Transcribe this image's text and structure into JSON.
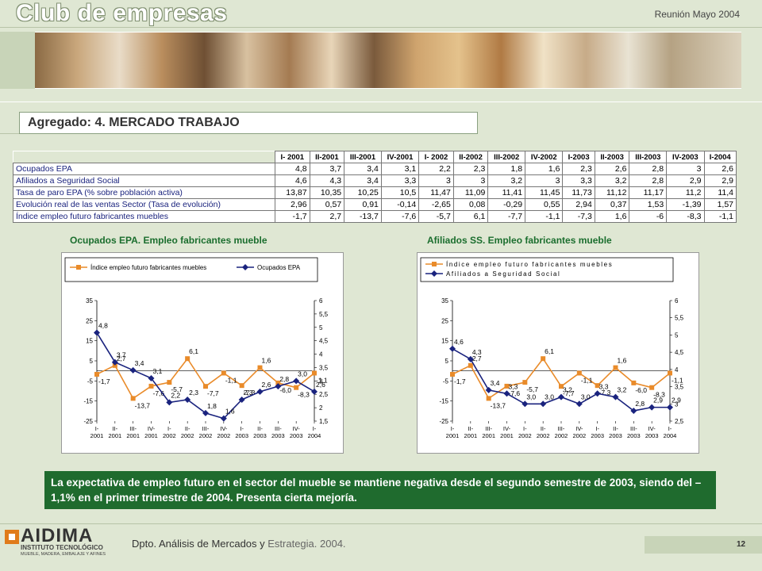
{
  "header": {
    "title": "Club de empresas",
    "date": "Reunión Mayo 2004"
  },
  "section_title": "Agregado: 4. MERCADO TRABAJO",
  "table": {
    "columns": [
      "I- 2001",
      "II-2001",
      "III-2001",
      "IV-2001",
      "I- 2002",
      "II-2002",
      "III-2002",
      "IV-2002",
      "I-2003",
      "II-2003",
      "III-2003",
      "IV-2003",
      "I-2004"
    ],
    "rows": [
      {
        "label": "Ocupados EPA",
        "values": [
          "4,8",
          "3,7",
          "3,4",
          "3,1",
          "2,2",
          "2,3",
          "1,8",
          "1,6",
          "2,3",
          "2,6",
          "2,8",
          "3",
          "2,6"
        ]
      },
      {
        "label": "Afiliados a Seguridad Social",
        "values": [
          "4,6",
          "4,3",
          "3,4",
          "3,3",
          "3",
          "3",
          "3,2",
          "3",
          "3,3",
          "3,2",
          "2,8",
          "2,9",
          "2,9"
        ]
      },
      {
        "label": "Tasa de paro EPA (% sobre población activa)",
        "values": [
          "13,87",
          "10,35",
          "10,25",
          "10,5",
          "11,47",
          "11,09",
          "11,41",
          "11,45",
          "11,73",
          "11,12",
          "11,17",
          "11,2",
          "11,4"
        ]
      },
      {
        "label": "Evolución real de las ventas Sector (Tasa de evolución)",
        "values": [
          "2,96",
          "0,57",
          "0,91",
          "-0,14",
          "-2,65",
          "0,08",
          "-0,29",
          "0,55",
          "2,94",
          "0,37",
          "1,53",
          "-1,39",
          "1,57"
        ]
      },
      {
        "label": "Índice empleo futuro fabricantes muebles",
        "values": [
          "-1,7",
          "2,7",
          "-13,7",
          "-7,6",
          "-5,7",
          "6,1",
          "-7,7",
          "-1,1",
          "-7,3",
          "1,6",
          "-6",
          "-8,3",
          "-1,1"
        ]
      }
    ]
  },
  "chart_data": [
    {
      "type": "line",
      "title": "Ocupados EPA. Empleo fabricantes mueble",
      "x": [
        "I- 2001",
        "II- 2001",
        "III- 2001",
        "IV- 2001",
        "I- 2002",
        "II- 2002",
        "III- 2002",
        "IV- 2002",
        "I- 2003",
        "II- 2003",
        "III- 2003",
        "IV- 2003",
        "I- 2004"
      ],
      "x_ticks": [
        [
          "I-",
          "2001"
        ],
        [
          "II-",
          "2001"
        ],
        [
          "III-",
          "2001"
        ],
        [
          "IV-",
          "2001"
        ],
        [
          "I-",
          "2002"
        ],
        [
          "II-",
          "2002"
        ],
        [
          "III-",
          "2002"
        ],
        [
          "IV-",
          "2002"
        ],
        [
          "I-",
          "2003"
        ],
        [
          "II-",
          "2003"
        ],
        [
          "III-",
          "2003"
        ],
        [
          "IV-",
          "2003"
        ],
        [
          "I-",
          "2004"
        ]
      ],
      "ylim_left": [
        -25,
        35
      ],
      "yticks_left": [
        35,
        25,
        15,
        5,
        -5,
        -15,
        -25
      ],
      "ylim_right": [
        1.5,
        6
      ],
      "yticks_right": [
        "6",
        "5,5",
        "5",
        "4,5",
        "4",
        "3,5",
        "3",
        "2,5",
        "2",
        "1,5"
      ],
      "yticks_right_values": [
        6,
        5.5,
        5,
        4.5,
        4,
        3.5,
        3,
        2.5,
        2,
        1.5
      ],
      "legend_position": "top",
      "series": [
        {
          "name": "Índice empleo futuro fabricantes muebles",
          "axis": "left",
          "color": "#e98b2a",
          "marker": "square",
          "values": [
            -1.7,
            2.7,
            -13.7,
            -7.6,
            -5.7,
            6.1,
            -7.7,
            -1.1,
            -7.3,
            1.6,
            -6,
            -8.3,
            -1.1
          ],
          "labels": [
            "-1,7",
            "2,7",
            "-13,7",
            "-7,6",
            "-5,7",
            "6,1",
            "-7,7",
            "-1,1",
            "-7,3",
            "1,6",
            "-6,0",
            "-8,3",
            "-1,1"
          ]
        },
        {
          "name": "Ocupados EPA",
          "axis": "right",
          "color": "#1a237e",
          "marker": "diamond",
          "values": [
            4.8,
            3.7,
            3.4,
            3.1,
            2.2,
            2.3,
            1.8,
            1.6,
            2.3,
            2.6,
            2.8,
            3.0,
            2.6
          ],
          "labels": [
            "4,8",
            "3,7",
            "3,4",
            "3,1",
            "2,2",
            "2,3",
            "1,8",
            "1,6",
            "2,3",
            "2,6",
            "2,8",
            "3,0",
            "2,6"
          ]
        }
      ]
    },
    {
      "type": "line",
      "title": "Afiliados SS. Empleo fabricantes mueble",
      "x": [
        "I- 2001",
        "II- 2001",
        "III- 2001",
        "IV- 2001",
        "I- 2002",
        "II- 2002",
        "III- 2002",
        "IV- 2002",
        "I- 2003",
        "II- 2003",
        "III- 2003",
        "IV- 2003",
        "I- 2004"
      ],
      "x_ticks": [
        [
          "I-",
          "2001"
        ],
        [
          "II-",
          "2001"
        ],
        [
          "III-",
          "2001"
        ],
        [
          "IV-",
          "2001"
        ],
        [
          "I-",
          "2002"
        ],
        [
          "II-",
          "2002"
        ],
        [
          "III-",
          "2002"
        ],
        [
          "IV-",
          "2002"
        ],
        [
          "I-",
          "2003"
        ],
        [
          "II-",
          "2003"
        ],
        [
          "III-",
          "2003"
        ],
        [
          "IV-",
          "2003"
        ],
        [
          "I-",
          "2004"
        ]
      ],
      "ylim_left": [
        -25,
        35
      ],
      "yticks_left": [
        35,
        25,
        15,
        5,
        -5,
        -15,
        -25
      ],
      "ylim_right": [
        2.5,
        6
      ],
      "yticks_right": [
        "6",
        "5,5",
        "5",
        "4,5",
        "4",
        "3,5",
        "3",
        "2,5"
      ],
      "yticks_right_values": [
        6,
        5.5,
        5,
        4.5,
        4,
        3.5,
        3,
        2.5
      ],
      "legend_position": "top",
      "series": [
        {
          "name": "Índice empleo futuro fabricantes muebles",
          "axis": "left",
          "color": "#e98b2a",
          "marker": "square",
          "values": [
            -1.7,
            2.7,
            -13.7,
            -7.6,
            -5.7,
            6.1,
            -7.7,
            -1.1,
            -7.3,
            1.6,
            -6,
            -8.3,
            -1.1
          ],
          "labels": [
            "-1,7",
            "2,7",
            "-13,7",
            "-7,6",
            "-5,7",
            "6,1",
            "-7,7",
            "-1,1",
            "-7,3",
            "1,6",
            "-6,0",
            "-8,3",
            "-1,1"
          ]
        },
        {
          "name": "Afiliados a Seguridad Social",
          "axis": "right",
          "color": "#1a237e",
          "marker": "diamond",
          "values": [
            4.6,
            4.3,
            3.4,
            3.3,
            3.0,
            3.0,
            3.2,
            3.0,
            3.3,
            3.2,
            2.8,
            2.9,
            2.9
          ],
          "labels": [
            "4,6",
            "4,3",
            "3,4",
            "3,3",
            "3,0",
            "3,0",
            "3,2",
            "3,0",
            "3,3",
            "3,2",
            "2,8",
            "2,9",
            "2,9"
          ]
        }
      ]
    }
  ],
  "note": "La expectativa de empleo futuro en el sector del mueble se mantiene negativa desde el segundo semestre de 2003, siendo del –1,1% en el primer trimestre de 2004. Presenta cierta mejoría.",
  "footer": {
    "logo": "AIDIMA",
    "logo_sub": "INSTITUTO TECNOLÓGICO",
    "logo_sub2": "MUEBLE, MADERA, EMBALAJE Y AFINES",
    "text_a": "Dpto. Análisis de Mercados y",
    "text_b": " Estrategia. 2004.",
    "page": "12"
  },
  "colors": {
    "accent_green": "#1f6b2e",
    "orange_series": "#e98b2a",
    "navy_series": "#1a237e"
  }
}
